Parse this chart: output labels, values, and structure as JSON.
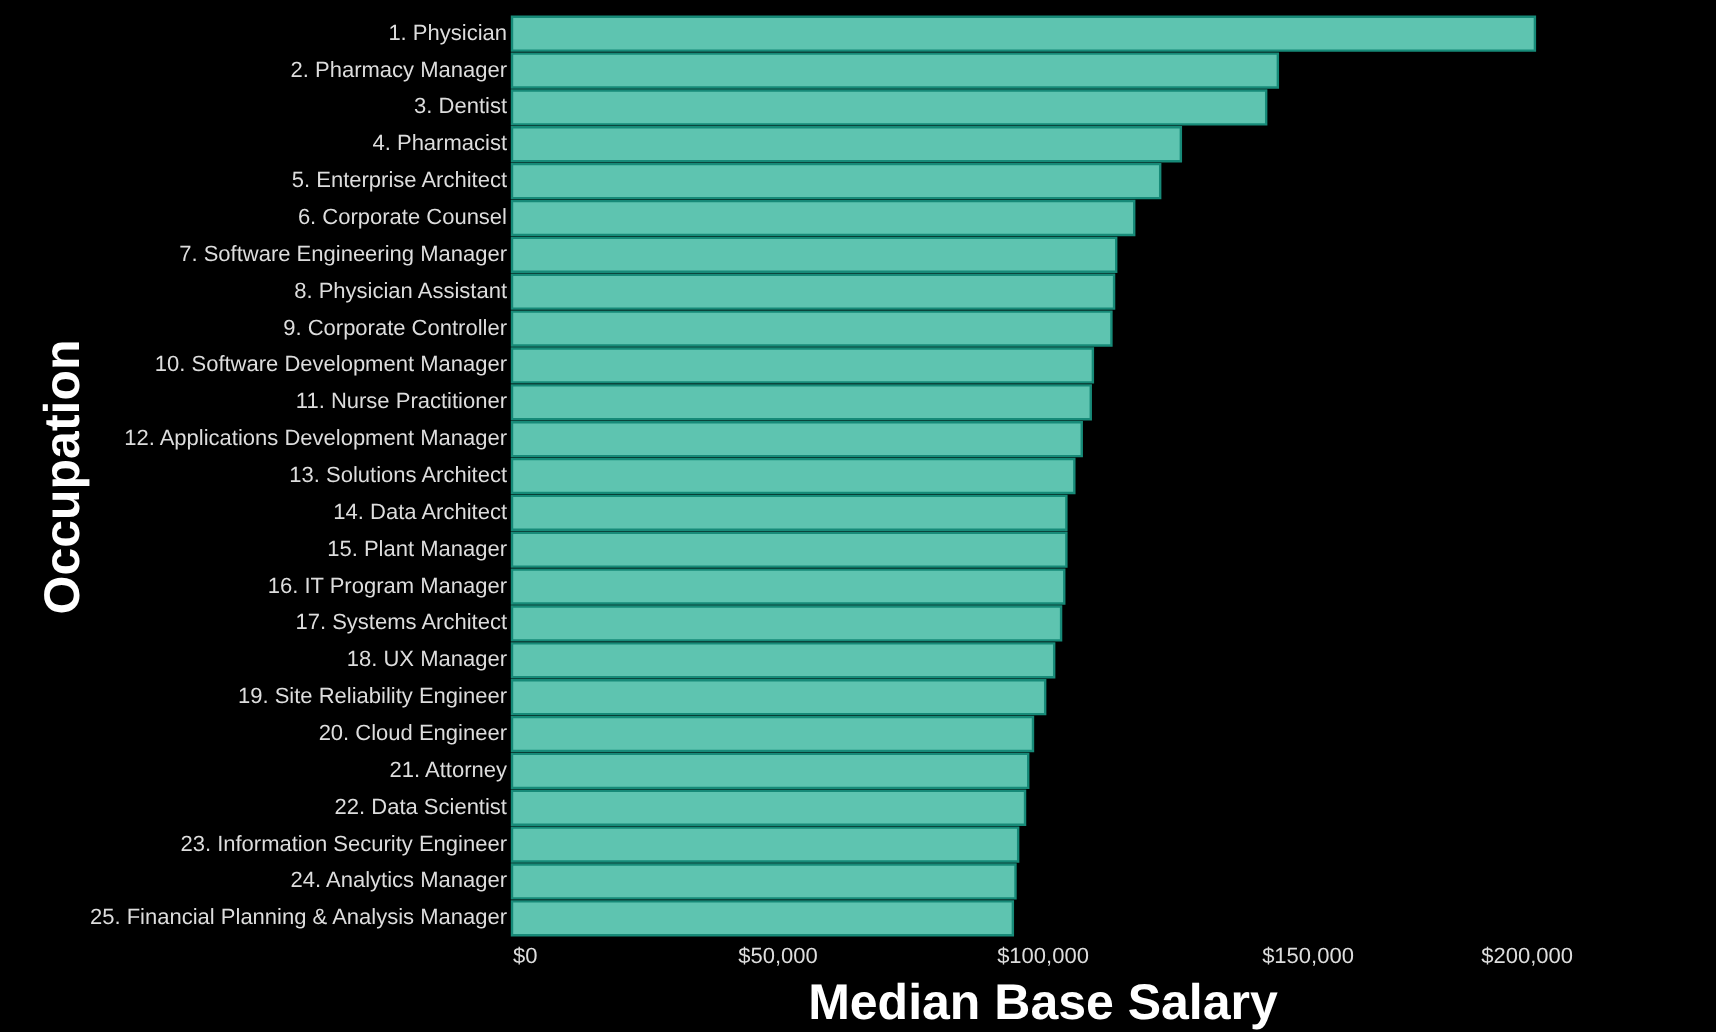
{
  "chart_data": {
    "type": "bar",
    "orientation": "horizontal",
    "xlabel": "Median Base Salary",
    "ylabel": "Occupation",
    "categories": [
      "1. Physician",
      "2. Pharmacy Manager",
      "3. Dentist",
      "4. Pharmacist",
      "5. Enterprise Architect",
      "6. Corporate Counsel",
      "7. Software Engineering Manager",
      "8. Physician Assistant",
      "9. Corporate Controller",
      "10. Software Development Manager",
      "11. Nurse Practitioner",
      "12. Applications Development Manager",
      "13. Solutions Architect",
      "14. Data Architect",
      "15. Plant Manager",
      "16. IT Program Manager",
      "17. Systems Architect",
      "18. UX Manager",
      "19. Site Reliability Engineer",
      "20. Cloud Engineer",
      "21. Attorney",
      "22. Data Scientist",
      "23. Information Security Engineer",
      "24. Analytics Manager",
      "25. Financial Planning & Analysis Manager"
    ],
    "values": [
      193000,
      144500,
      142300,
      126200,
      122300,
      117400,
      114000,
      113600,
      113100,
      109600,
      109200,
      107500,
      106100,
      104600,
      104600,
      104200,
      103600,
      102300,
      100600,
      98300,
      97400,
      96800,
      95500,
      95000,
      94500
    ],
    "color": "#5ec4b0",
    "xlim": [
      0,
      200000
    ],
    "xticks": [
      {
        "value": 0,
        "label": "$0"
      },
      {
        "value": 50000,
        "label": "$50,000"
      },
      {
        "value": 100000,
        "label": "$100,000"
      },
      {
        "value": 150000,
        "label": "$150,000"
      },
      {
        "value": 200000,
        "label": "$200,000"
      }
    ]
  }
}
